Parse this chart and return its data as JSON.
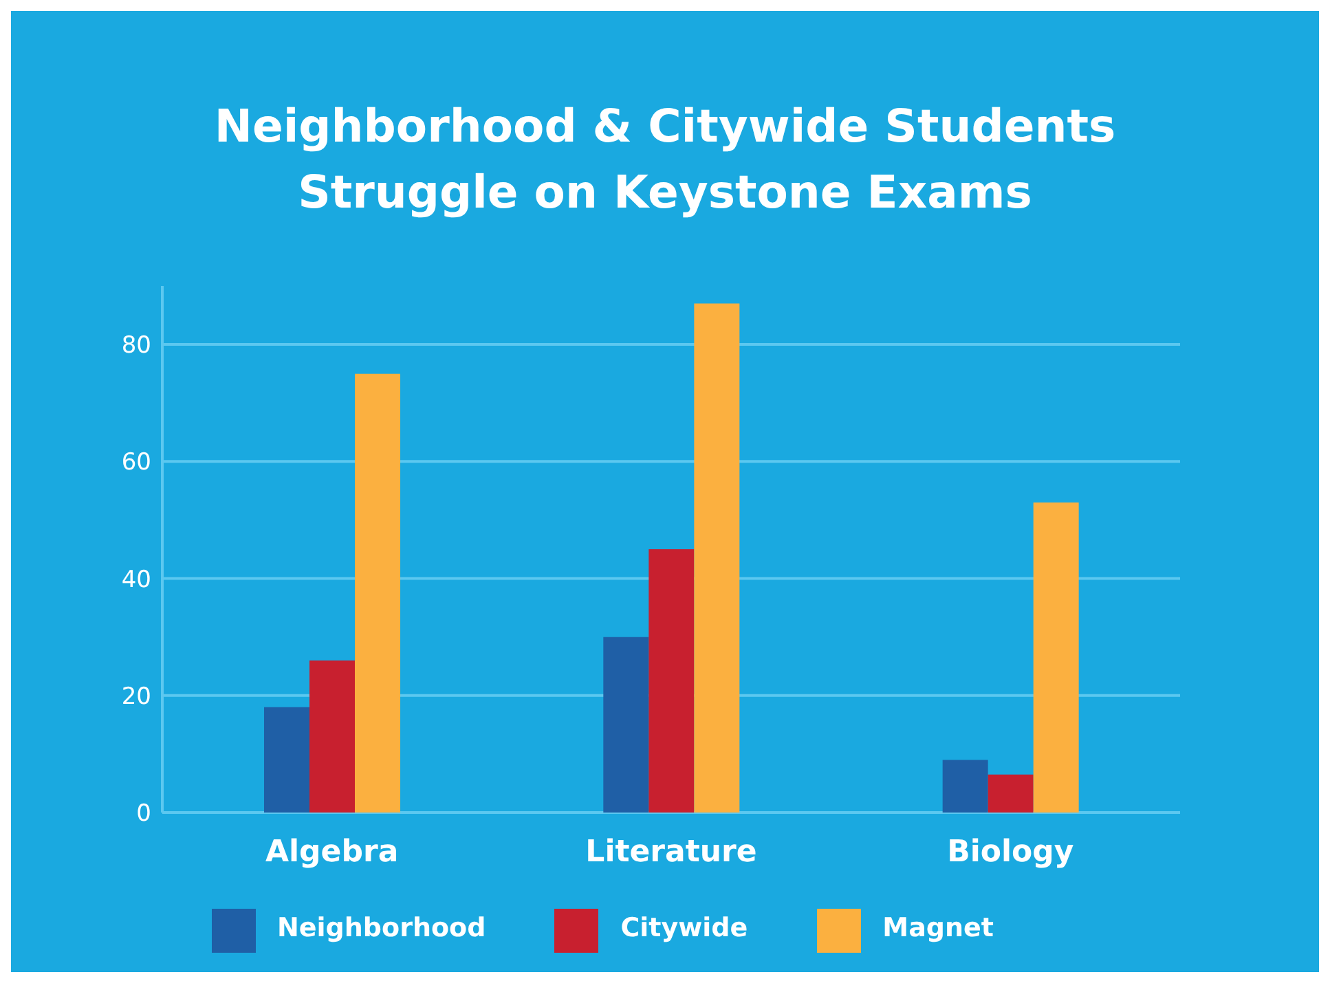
{
  "chart_data": {
    "type": "bar",
    "title": "Neighborhood & Citywide Students\nStruggle on Keystone Exams",
    "categories": [
      "Algebra",
      "Literature",
      "Biology"
    ],
    "series": [
      {
        "name": "Neighborhood",
        "color": "#1f5fa6",
        "values": [
          18,
          30,
          9
        ]
      },
      {
        "name": "Citywide",
        "color": "#c8202f",
        "values": [
          26,
          45,
          6.5
        ]
      },
      {
        "name": "Magnet",
        "color": "#fbb040",
        "values": [
          75,
          87,
          53
        ]
      }
    ],
    "ylim": [
      0,
      90
    ],
    "yticks": [
      0,
      20,
      40,
      60,
      80
    ],
    "grid": "y",
    "legend": "bottom"
  }
}
